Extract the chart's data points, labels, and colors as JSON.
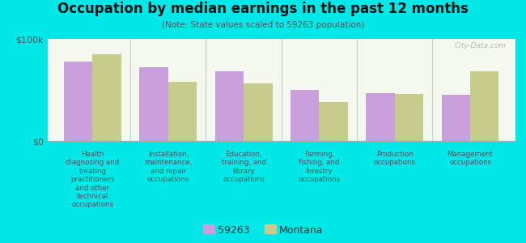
{
  "title": "Occupation by median earnings in the past 12 months",
  "subtitle": "(Note: State values scaled to 59263 population)",
  "background_color": "#00e8e8",
  "plot_bg_top": "#e8f0d8",
  "plot_bg_bottom": "#f5f8ee",
  "categories": [
    "Health\ndiagnosing and\ntreating\npractitioners\nand other\ntechnical\noccupations",
    "Installation,\nmaintenance,\nand repair\noccupations",
    "Education,\ntraining, and\nlibrary\noccupations",
    "Farming,\nfishing, and\nforestry\noccupations",
    "Production\noccupations",
    "Management\noccupations"
  ],
  "values_59263": [
    78000,
    72000,
    68000,
    50000,
    47000,
    45000
  ],
  "values_montana": [
    85000,
    58000,
    56000,
    38000,
    46000,
    68000
  ],
  "color_59263": "#c9a0dc",
  "color_montana": "#c8cc8a",
  "ylim": [
    0,
    100000
  ],
  "yticks": [
    0,
    100000
  ],
  "ytick_labels": [
    "$0",
    "$100k"
  ],
  "legend_labels": [
    "59263",
    "Montana"
  ],
  "bar_width": 0.38,
  "watermark": "City-Data.com"
}
